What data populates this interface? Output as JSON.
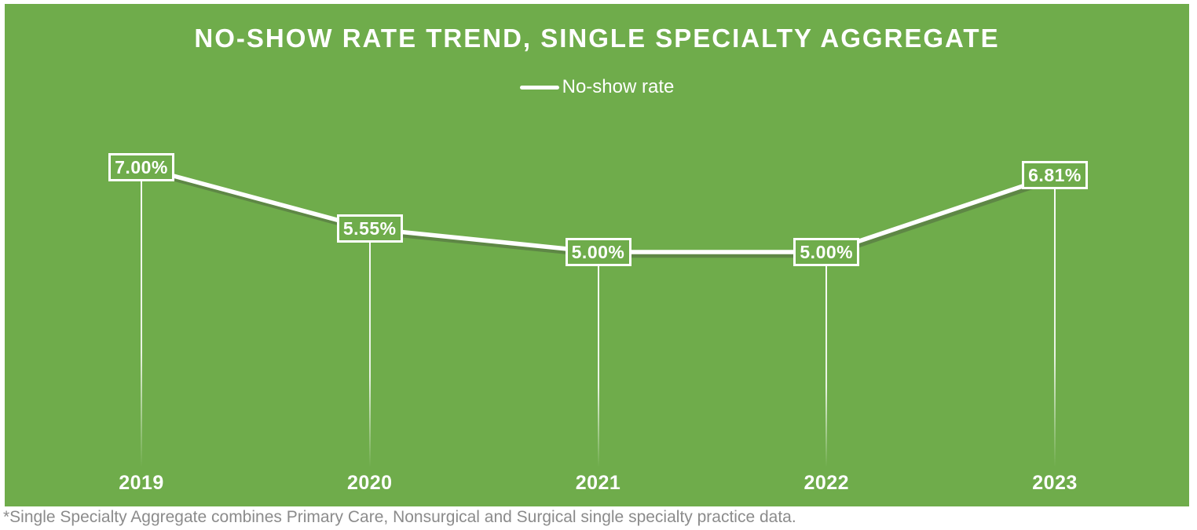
{
  "colors": {
    "panel_background": "#6FAC4B",
    "line": "#FFFFFF",
    "title_text": "#FFFFFF",
    "data_label_text": "#FFFFFF",
    "footnote_text": "#8B8B8B"
  },
  "chart_data": {
    "type": "line",
    "title": "NO-SHOW RATE TREND, SINGLE SPECIALTY AGGREGATE",
    "categories": [
      "2019",
      "2020",
      "2021",
      "2022",
      "2023"
    ],
    "series": [
      {
        "name": "No-show rate",
        "values": [
          7.0,
          5.55,
          5.0,
          5.0,
          6.81
        ],
        "data_labels": [
          "7.00%",
          "5.55%",
          "5.00%",
          "5.00%",
          "6.81%"
        ]
      }
    ],
    "legend_position": "top-center",
    "grid": false,
    "y_axis_visible": false,
    "x_axis_visible": true,
    "data_labels_shown": true,
    "drop_lines": true,
    "footnote": "*Single Specialty Aggregate combines Primary Care, Nonsurgical and Surgical single specialty practice data."
  }
}
